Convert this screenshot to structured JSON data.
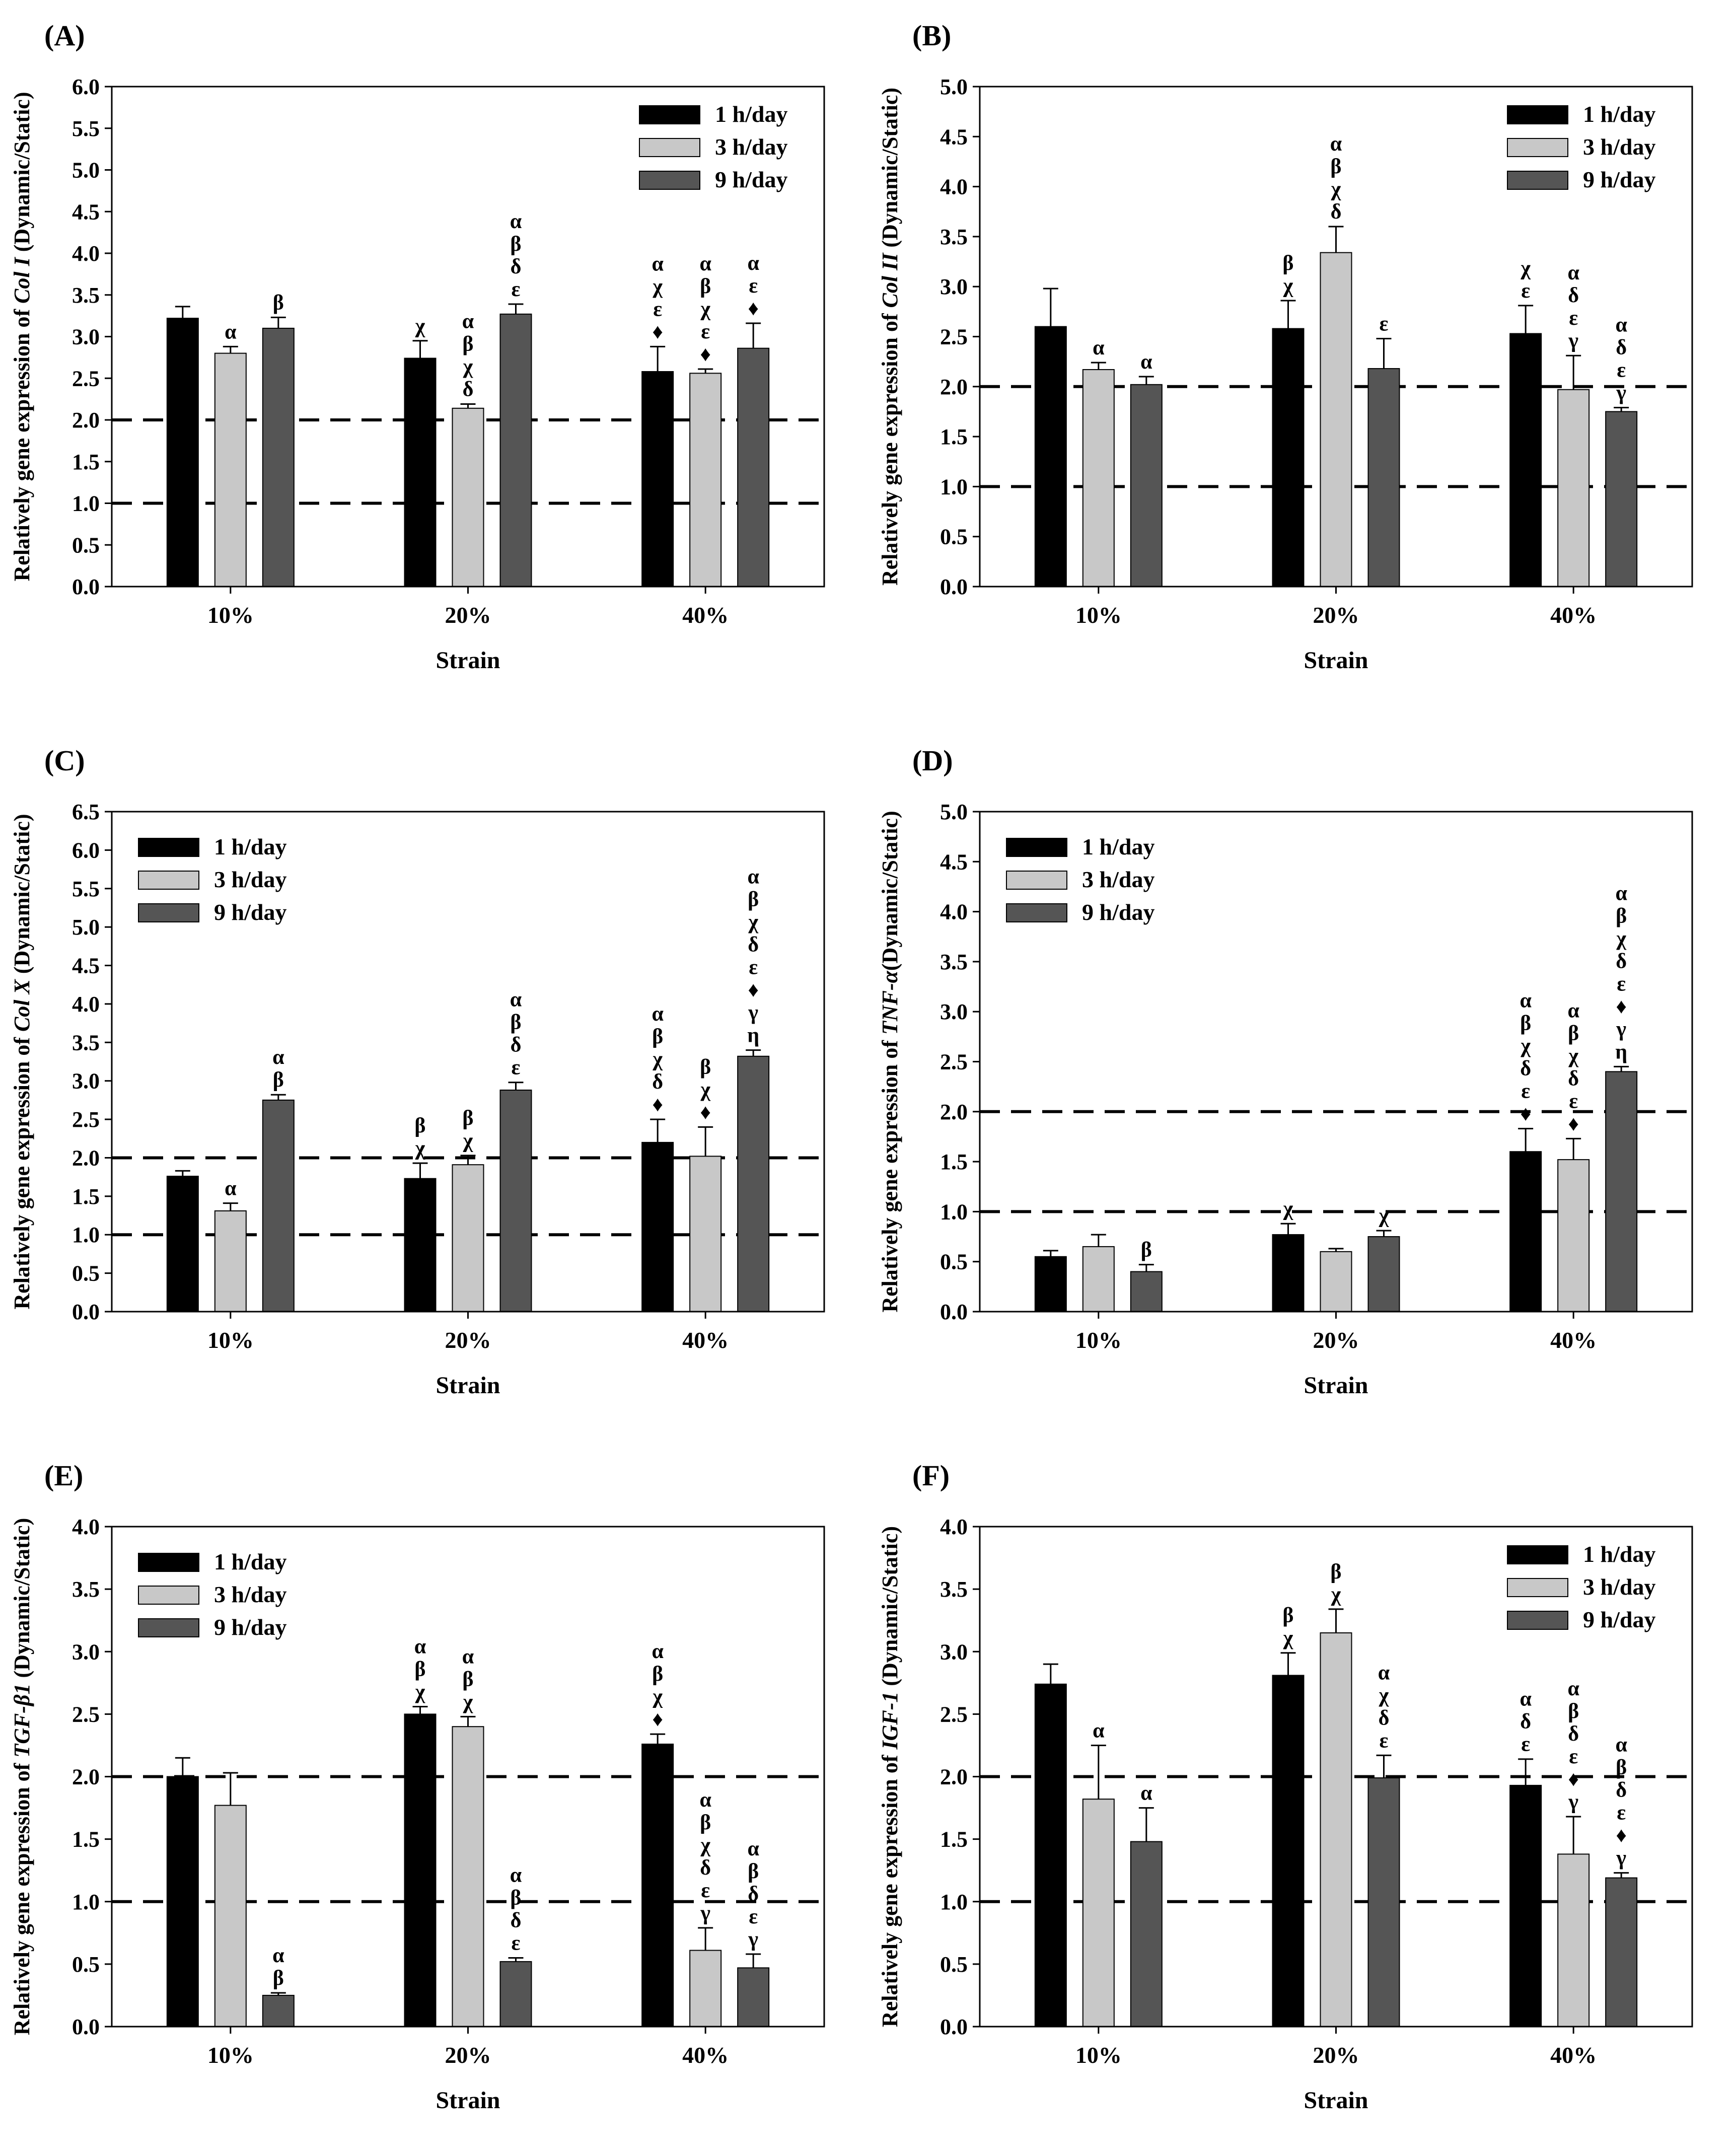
{
  "legend_labels": [
    "1 h/day",
    "3 h/day",
    "9 h/day"
  ],
  "series_colors": [
    "#000000",
    "#c8c8c8",
    "#555555"
  ],
  "chart_data": [
    {
      "id": "A",
      "panel_label": "(A)",
      "type": "bar",
      "ylabel_prefix": "Relatively gene expression of ",
      "ylabel_gene": "Col I",
      "ylabel_suffix": " (Dynamic/Static)",
      "xlabel": "Strain",
      "categories": [
        "10%",
        "20%",
        "40%"
      ],
      "ylim": [
        0,
        6.0
      ],
      "ytick_step": 0.5,
      "reference_lines": [
        1.0,
        2.0
      ],
      "legend_position": "top-right",
      "series": [
        {
          "name": "1 h/day",
          "values": [
            3.22,
            2.74,
            2.58
          ],
          "errors": [
            0.14,
            0.21,
            0.3
          ]
        },
        {
          "name": "3 h/day",
          "values": [
            2.8,
            2.14,
            2.56
          ],
          "errors": [
            0.08,
            0.05,
            0.05
          ]
        },
        {
          "name": "9 h/day",
          "values": [
            3.1,
            3.27,
            2.86
          ],
          "errors": [
            0.13,
            0.12,
            0.3
          ]
        }
      ],
      "annotations": [
        [
          [],
          [
            "α"
          ],
          [
            "β"
          ]
        ],
        [
          [
            "χ"
          ],
          [
            "α",
            "β",
            "χ",
            "δ"
          ],
          [
            "α",
            "β",
            "δ",
            "ε"
          ]
        ],
        [
          [
            "α",
            "χ",
            "ε",
            "♦"
          ],
          [
            "α",
            "β",
            "χ",
            "ε",
            "♦"
          ],
          [
            "α",
            "ε",
            "♦"
          ]
        ]
      ]
    },
    {
      "id": "B",
      "panel_label": "(B)",
      "type": "bar",
      "ylabel_prefix": "Relatively gene expression of ",
      "ylabel_gene": "Col II",
      "ylabel_suffix": " (Dynamic/Static)",
      "xlabel": "Strain",
      "categories": [
        "10%",
        "20%",
        "40%"
      ],
      "ylim": [
        0,
        5.0
      ],
      "ytick_step": 0.5,
      "reference_lines": [
        1.0,
        2.0
      ],
      "legend_position": "top-right",
      "series": [
        {
          "name": "1 h/day",
          "values": [
            2.6,
            2.58,
            2.53
          ],
          "errors": [
            0.38,
            0.28,
            0.28
          ]
        },
        {
          "name": "3 h/day",
          "values": [
            2.17,
            3.34,
            1.97
          ],
          "errors": [
            0.07,
            0.26,
            0.34
          ]
        },
        {
          "name": "9 h/day",
          "values": [
            2.02,
            2.18,
            1.75
          ],
          "errors": [
            0.08,
            0.3,
            0.04
          ]
        }
      ],
      "annotations": [
        [
          [],
          [
            "α"
          ],
          [
            "α"
          ]
        ],
        [
          [
            "β",
            "χ"
          ],
          [
            "α",
            "β",
            "χ",
            "δ"
          ],
          [
            "ε"
          ]
        ],
        [
          [
            "χ",
            "ε"
          ],
          [
            "α",
            "δ",
            "ε",
            "γ"
          ],
          [
            "α",
            "δ",
            "ε",
            "γ"
          ]
        ]
      ]
    },
    {
      "id": "C",
      "panel_label": "(C)",
      "type": "bar",
      "ylabel_prefix": "Relatively gene expression of ",
      "ylabel_gene": "Col X",
      "ylabel_suffix": " (Dynamic/Static)",
      "xlabel": "Strain",
      "categories": [
        "10%",
        "20%",
        "40%"
      ],
      "ylim": [
        0,
        6.5
      ],
      "ytick_step": 0.5,
      "reference_lines": [
        1.0,
        2.0
      ],
      "legend_position": "top-left",
      "series": [
        {
          "name": "1 h/day",
          "values": [
            1.76,
            1.73,
            2.2
          ],
          "errors": [
            0.07,
            0.2,
            0.3
          ]
        },
        {
          "name": "3 h/day",
          "values": [
            1.31,
            1.91,
            2.02
          ],
          "errors": [
            0.1,
            0.12,
            0.38
          ]
        },
        {
          "name": "9 h/day",
          "values": [
            2.75,
            2.88,
            3.32
          ],
          "errors": [
            0.07,
            0.1,
            0.08
          ]
        }
      ],
      "annotations": [
        [
          [],
          [
            "α"
          ],
          [
            "α",
            "β"
          ]
        ],
        [
          [
            "β",
            "χ"
          ],
          [
            "β",
            "χ"
          ],
          [
            "α",
            "β",
            "δ",
            "ε"
          ]
        ],
        [
          [
            "α",
            "β",
            "χ",
            "δ",
            "♦"
          ],
          [
            "β",
            "χ",
            "♦"
          ],
          [
            "α",
            "β",
            "χ",
            "δ",
            "ε",
            "♦",
            "γ",
            "η"
          ]
        ]
      ]
    },
    {
      "id": "D",
      "panel_label": "(D)",
      "type": "bar",
      "ylabel_prefix": "Relatively gene expression of ",
      "ylabel_gene": "TNF-α",
      "ylabel_suffix": "(Dynamic/Static)",
      "xlabel": "Strain",
      "categories": [
        "10%",
        "20%",
        "40%"
      ],
      "ylim": [
        0,
        5.0
      ],
      "ytick_step": 0.5,
      "reference_lines": [
        1.0,
        2.0
      ],
      "legend_position": "top-left",
      "series": [
        {
          "name": "1 h/day",
          "values": [
            0.55,
            0.77,
            1.6
          ],
          "errors": [
            0.06,
            0.11,
            0.23
          ]
        },
        {
          "name": "3 h/day",
          "values": [
            0.65,
            0.6,
            1.52
          ],
          "errors": [
            0.12,
            0.03,
            0.21
          ]
        },
        {
          "name": "9 h/day",
          "values": [
            0.4,
            0.75,
            2.4
          ],
          "errors": [
            0.07,
            0.06,
            0.05
          ]
        }
      ],
      "annotations": [
        [
          [],
          [],
          [
            "β"
          ]
        ],
        [
          [
            "χ"
          ],
          [],
          [
            "χ"
          ]
        ],
        [
          [
            "α",
            "β",
            "χ",
            "δ",
            "ε",
            "♦"
          ],
          [
            "α",
            "β",
            "χ",
            "δ",
            "ε",
            "♦"
          ],
          [
            "α",
            "β",
            "χ",
            "δ",
            "ε",
            "♦",
            "γ",
            "η"
          ]
        ]
      ]
    },
    {
      "id": "E",
      "panel_label": "(E)",
      "type": "bar",
      "ylabel_prefix": "Relatively gene expression of ",
      "ylabel_gene": "TGF-β1",
      "ylabel_suffix": " (Dynamic/Static)",
      "xlabel": "Strain",
      "categories": [
        "10%",
        "20%",
        "40%"
      ],
      "ylim": [
        0,
        4.0
      ],
      "ytick_step": 0.5,
      "reference_lines": [
        1.0,
        2.0
      ],
      "legend_position": "top-left",
      "series": [
        {
          "name": "1 h/day",
          "values": [
            2.0,
            2.5,
            2.26
          ],
          "errors": [
            0.15,
            0.06,
            0.08
          ]
        },
        {
          "name": "3 h/day",
          "values": [
            1.77,
            2.4,
            0.61
          ],
          "errors": [
            0.26,
            0.08,
            0.18
          ]
        },
        {
          "name": "9 h/day",
          "values": [
            0.25,
            0.52,
            0.47
          ],
          "errors": [
            0.02,
            0.03,
            0.11
          ]
        }
      ],
      "annotations": [
        [
          [],
          [],
          [
            "α",
            "β"
          ]
        ],
        [
          [
            "α",
            "β",
            "χ"
          ],
          [
            "α",
            "β",
            "χ"
          ],
          [
            "α",
            "β",
            "δ",
            "ε"
          ]
        ],
        [
          [
            "α",
            "β",
            "χ",
            "♦"
          ],
          [
            "α",
            "β",
            "χ",
            "δ",
            "ε",
            "γ"
          ],
          [
            "α",
            "β",
            "δ",
            "ε",
            "γ"
          ]
        ]
      ]
    },
    {
      "id": "F",
      "panel_label": "(F)",
      "type": "bar",
      "ylabel_prefix": "Relatively gene expression of ",
      "ylabel_gene": "IGF-1",
      "ylabel_suffix": " (Dynamic/Static)",
      "xlabel": "Strain",
      "categories": [
        "10%",
        "20%",
        "40%"
      ],
      "ylim": [
        0,
        4.0
      ],
      "ytick_step": 0.5,
      "reference_lines": [
        1.0,
        2.0
      ],
      "legend_position": "top-right",
      "series": [
        {
          "name": "1 h/day",
          "values": [
            2.74,
            2.81,
            1.93
          ],
          "errors": [
            0.16,
            0.18,
            0.21
          ]
        },
        {
          "name": "3 h/day",
          "values": [
            1.82,
            3.15,
            1.38
          ],
          "errors": [
            0.43,
            0.19,
            0.3
          ]
        },
        {
          "name": "9 h/day",
          "values": [
            1.48,
            1.99,
            1.19
          ],
          "errors": [
            0.27,
            0.18,
            0.04
          ]
        }
      ],
      "annotations": [
        [
          [],
          [
            "α"
          ],
          [
            "α"
          ]
        ],
        [
          [
            "β",
            "χ"
          ],
          [
            "β",
            "χ"
          ],
          [
            "α",
            "χ",
            "δ",
            "ε"
          ]
        ],
        [
          [
            "α",
            "δ",
            "ε"
          ],
          [
            "α",
            "β",
            "δ",
            "ε",
            "♦",
            "γ"
          ],
          [
            "α",
            "β",
            "δ",
            "ε",
            "♦",
            "γ"
          ]
        ]
      ]
    }
  ]
}
